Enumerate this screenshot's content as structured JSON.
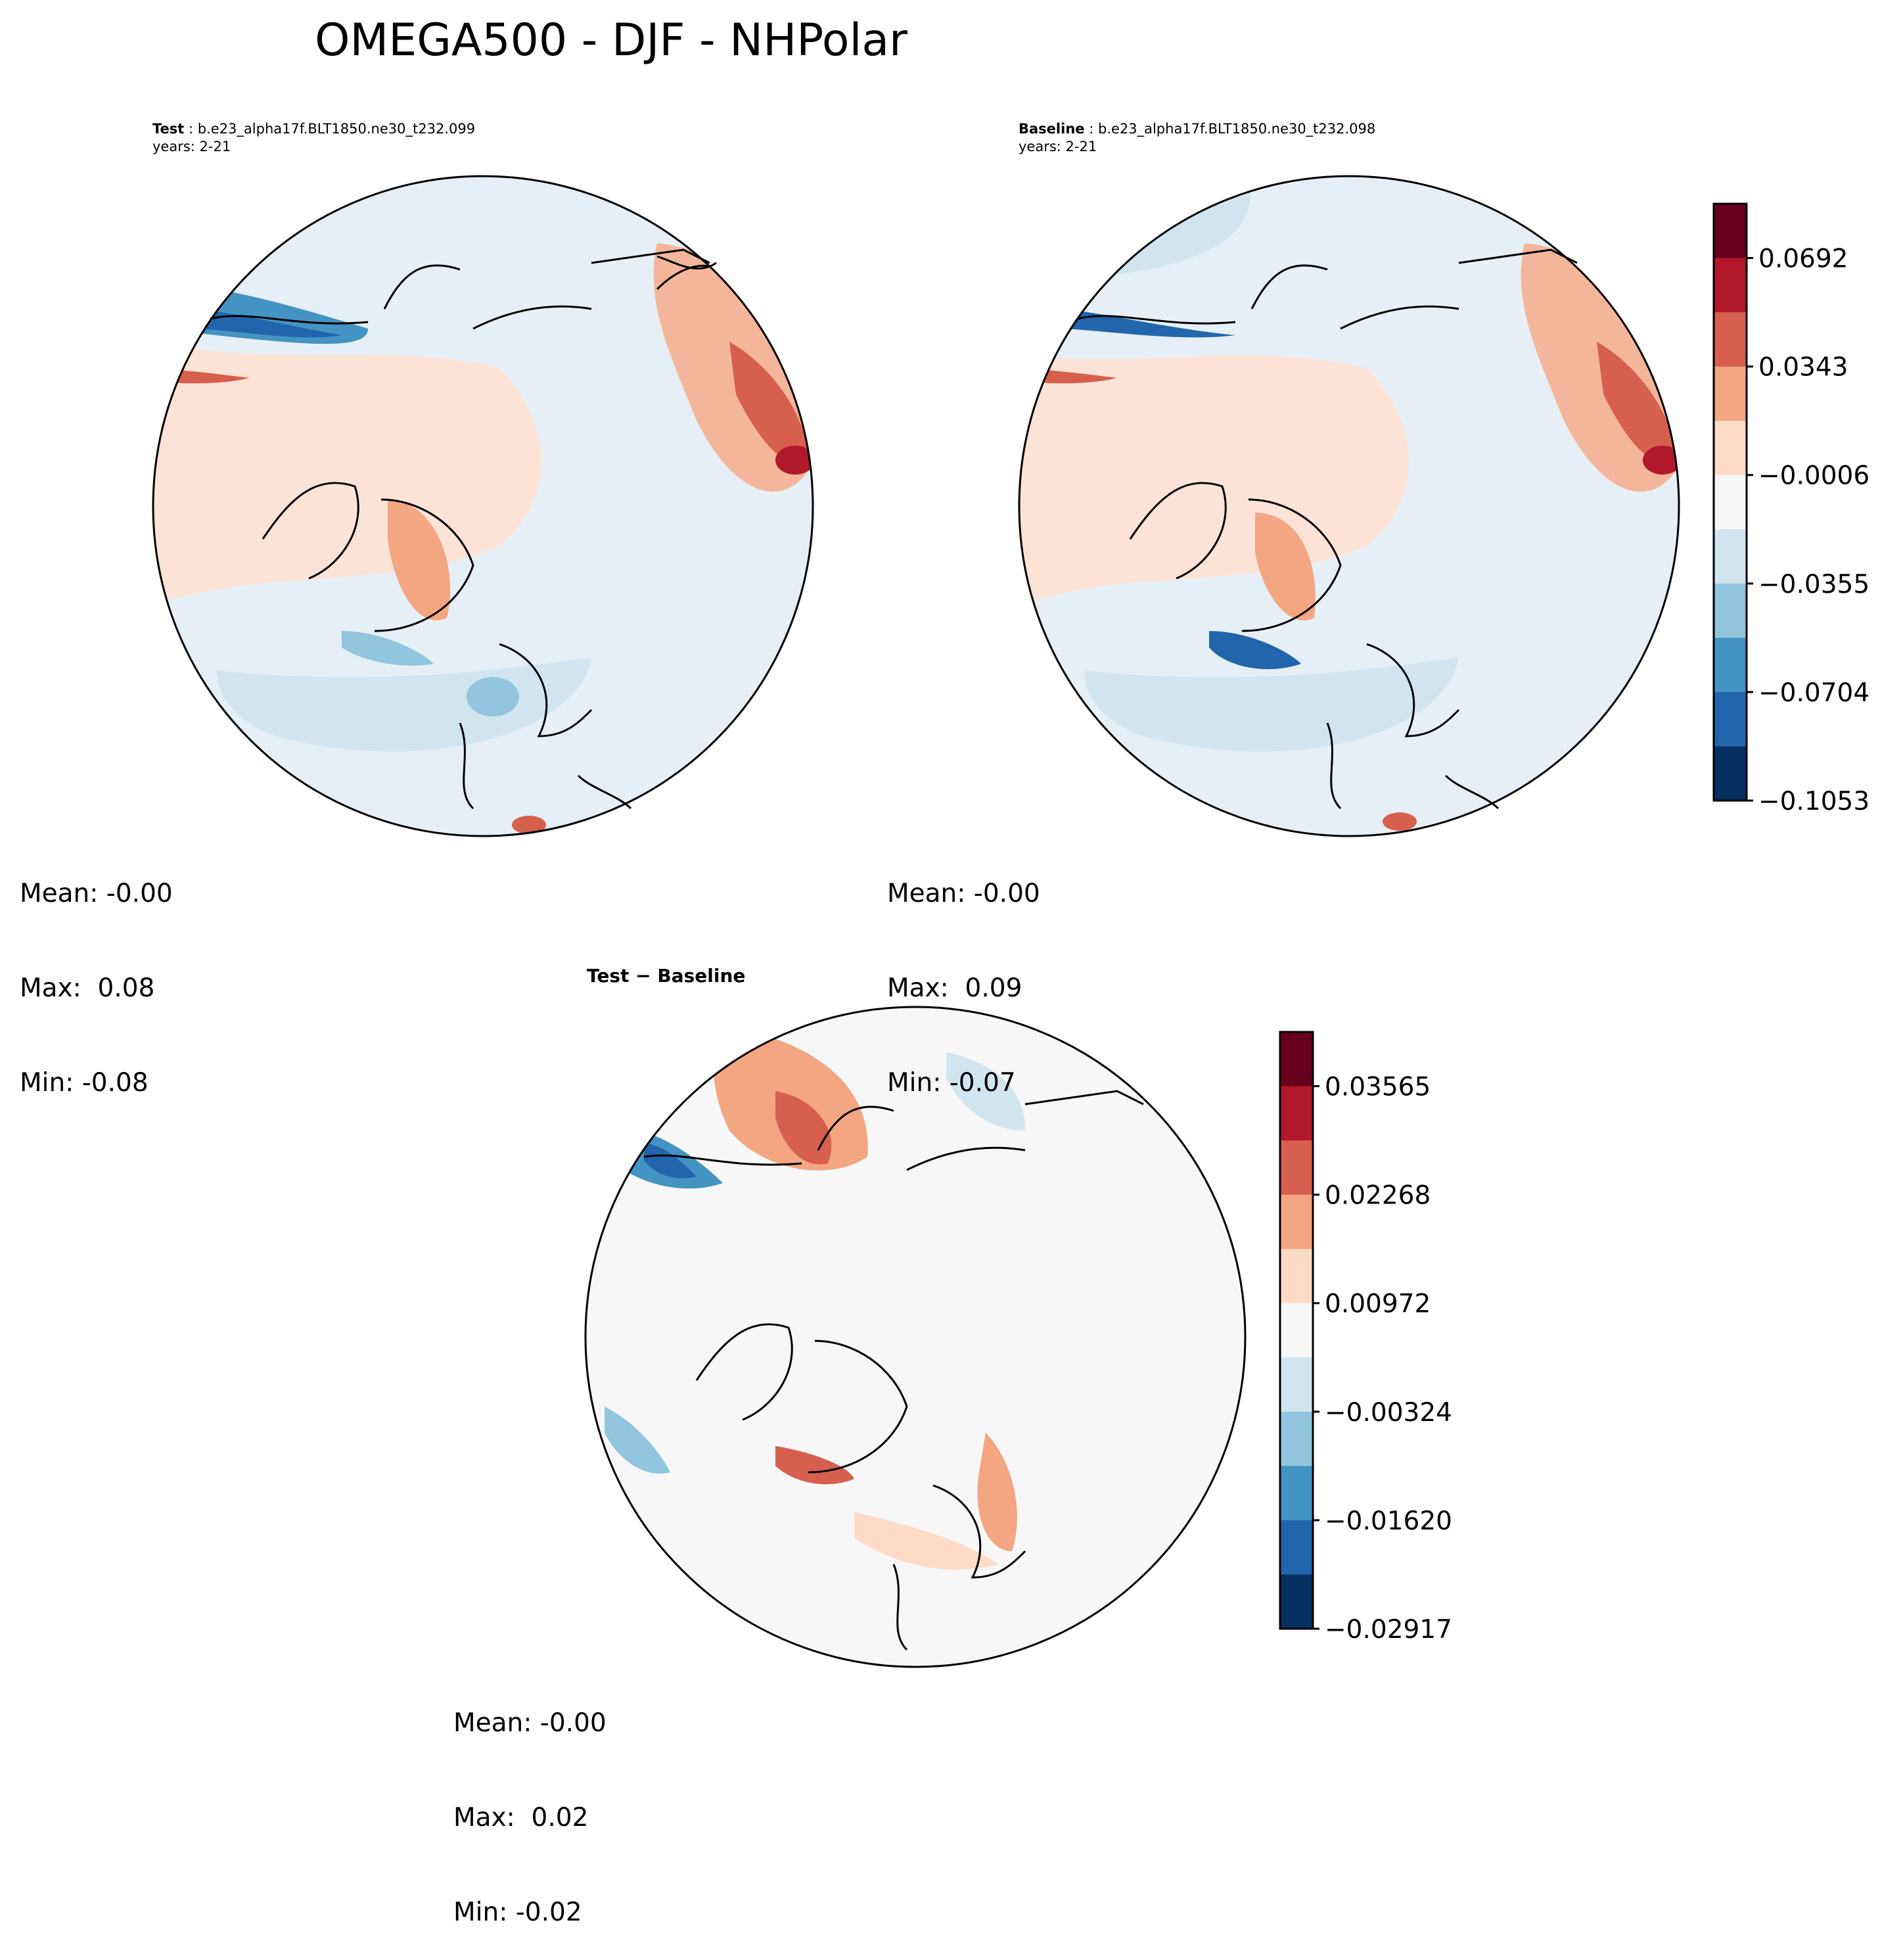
{
  "title": "OMEGA500 - DJF - NHPolar",
  "panels": {
    "test": {
      "label": "Test",
      "case": "b.e23_alpha17f.BLT1850.ne30_t232.099",
      "years": "years: 2-21",
      "mean": "Mean: -0.00",
      "max": "Max:  0.08",
      "min": "Min: -0.08"
    },
    "baseline": {
      "label": "Baseline",
      "case": "b.e23_alpha17f.BLT1850.ne30_t232.098",
      "years": "years: 2-21",
      "mean": "Mean: -0.00",
      "max": "Max:  0.09",
      "min": "Min: -0.07"
    },
    "diff": {
      "label": "Test − Baseline",
      "mean": "Mean: -0.00",
      "max": "Max:  0.02",
      "min": "Min: -0.02"
    }
  },
  "colorbars": {
    "main": {
      "ticks": [
        "0.0692",
        "0.0343",
        "−0.0006",
        "−0.0355",
        "−0.0704",
        "−0.1053"
      ],
      "colors": [
        "#67001f",
        "#b2182b",
        "#d6604d",
        "#f4a582",
        "#fddbc7",
        "#f7f7f7",
        "#d1e5f0",
        "#92c5de",
        "#4393c3",
        "#2166ac",
        "#053061"
      ]
    },
    "diff": {
      "ticks": [
        "0.03565",
        "0.02268",
        "0.00972",
        "−0.00324",
        "−0.01620",
        "−0.02917"
      ],
      "colors": [
        "#67001f",
        "#b2182b",
        "#d6604d",
        "#f4a582",
        "#fddbc7",
        "#f7f7f7",
        "#d1e5f0",
        "#92c5de",
        "#4393c3",
        "#2166ac",
        "#053061"
      ]
    }
  }
}
